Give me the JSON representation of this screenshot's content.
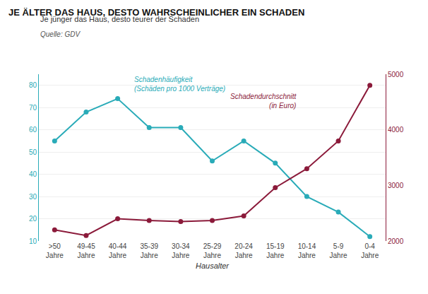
{
  "chart_data": {
    "type": "line",
    "title": "JE ÄLTER DAS HAUS, DESTO WAHRSCHEINLICHER EIN SCHADEN",
    "subtitle": "Je jünger das Haus, desto teurer der Schaden",
    "annotations": [
      "Quelle: GDV"
    ],
    "xlabel": "Hausalter",
    "categories": [
      ">50\nJahre",
      "49-45\nJahre",
      "40-44\nJahre",
      "35-39\nJahre",
      "30-34\nJahre",
      "25-29\nJahre",
      "20-24\nJahre",
      "15-19\nJahre",
      "10-14\nJahre",
      "5-9\nJahre",
      "0-4\nJahre"
    ],
    "series": [
      {
        "name": "Schadenhäufigkeit\n(Schäden pro 1000 Verträge)",
        "color": "#29ABB8",
        "marker": "circle",
        "values": [
          55,
          68,
          74,
          61,
          61,
          46,
          55,
          45,
          30,
          23,
          12
        ]
      },
      {
        "name": "Schadendurchschnitt\n(in Euro)",
        "color": "#8B1A3A",
        "marker": "circle",
        "axis": "y2",
        "values": [
          2200,
          2100,
          2400,
          2370,
          2350,
          2370,
          2450,
          2960,
          3300,
          3800,
          4800
        ]
      }
    ],
    "ylim": [
      10,
      85
    ],
    "yticks": [
      10,
      20,
      30,
      40,
      50,
      60,
      70,
      80
    ],
    "y2lim": [
      2000,
      5000
    ],
    "y2ticks": [
      2000,
      3000,
      4000,
      5000
    ],
    "grid": true
  }
}
